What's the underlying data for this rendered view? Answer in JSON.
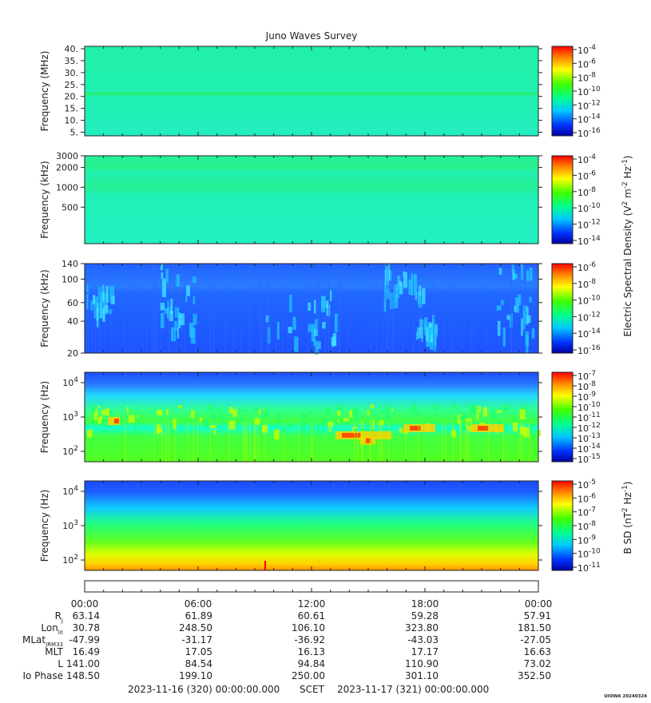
{
  "chart_data": {
    "type": "heatmap",
    "title": "Juno Waves Survey",
    "panels": [
      {
        "ylabel": "Frequency (MHz)",
        "yscale": "linear",
        "ylim": [
          3.5,
          41
        ],
        "yticks": [
          5,
          10,
          15,
          20,
          25,
          30,
          35,
          40
        ],
        "ytick_labels": [
          "5.",
          "10.",
          "15.",
          "20.",
          "25.",
          "30.",
          "35.",
          "40."
        ],
        "colorbar": {
          "labels": [
            "10^-4",
            "10^-6",
            "10^-8",
            "10^-10",
            "10^-12",
            "10^-14",
            "10^-16"
          ]
        }
      },
      {
        "ylabel": "Frequency (kHz)",
        "yscale": "log",
        "ylim": [
          140,
          3000
        ],
        "yticks": [
          500,
          1000,
          2000,
          3000
        ],
        "ytick_labels": [
          "500",
          "1000",
          "2000",
          "3000"
        ],
        "colorbar": {
          "labels": [
            "10^-4",
            "10^-6",
            "10^-8",
            "10^-10",
            "10^-12",
            "10^-14"
          ]
        }
      },
      {
        "ylabel": "Frequency (kHz)",
        "yscale": "log",
        "ylim": [
          20,
          140
        ],
        "yticks": [
          20,
          40,
          60,
          100,
          140
        ],
        "ytick_labels": [
          "20",
          "40",
          "60",
          "100",
          "140"
        ],
        "colorbar": {
          "labels": [
            "10^-6",
            "10^-8",
            "10^-10",
            "10^-12",
            "10^-14",
            "10^-16"
          ]
        }
      },
      {
        "ylabel": "Frequency (Hz)",
        "yscale": "log",
        "ylim": [
          50,
          20000
        ],
        "yticks": [
          100,
          1000,
          10000
        ],
        "ytick_labels": [
          "10^2",
          "10^3",
          "10^4"
        ],
        "colorbar": {
          "labels": [
            "10^-7",
            "10^-8",
            "10^-9",
            "10^-10",
            "10^-11",
            "10^-12",
            "10^-13",
            "10^-14",
            "10^-15"
          ]
        }
      },
      {
        "ylabel": "Frequency (Hz)",
        "yscale": "log",
        "ylim": [
          50,
          20000
        ],
        "yticks": [
          100,
          1000,
          10000
        ],
        "ytick_labels": [
          "10^2",
          "10^3",
          "10^4"
        ],
        "colorbar": {
          "labels": [
            "10^-5",
            "10^-6",
            "10^-7",
            "10^-8",
            "10^-9",
            "10^-10",
            "10^-11"
          ]
        }
      }
    ],
    "colorbar_shared_label": "Electric Spectral Density (V^2 m^-2 Hz^-1)",
    "colorbar_b_label": "B SD (nT^2 Hz^-1)",
    "x_tick_labels": [
      "00:00",
      "06:00",
      "12:00",
      "18:00",
      "00:00"
    ],
    "ephemeris": [
      {
        "label": "R",
        "sub": "J",
        "values": [
          "63.14",
          "61.89",
          "60.61",
          "59.28",
          "57.91"
        ]
      },
      {
        "label": "Lon",
        "sub": "III",
        "values": [
          "30.78",
          "248.50",
          "106.10",
          "323.80",
          "181.50"
        ]
      },
      {
        "label": "MLat",
        "sub": "JRM33",
        "values": [
          "-47.99",
          "-31.17",
          "-36.92",
          "-43.03",
          "-27.05"
        ]
      },
      {
        "label": "MLT",
        "sub": "",
        "values": [
          "16.49",
          "17.05",
          "16.13",
          "17.17",
          "16.63"
        ]
      },
      {
        "label": "L",
        "sub": "",
        "values": [
          "141.00",
          "84.54",
          "94.84",
          "110.90",
          "73.02"
        ]
      },
      {
        "label": "Io Phase",
        "sub": "",
        "values": [
          "148.50",
          "199.10",
          "250.00",
          "301.10",
          "352.50"
        ]
      }
    ],
    "footer_start": "2023-11-16 (320) 00:00:00.000",
    "footer_scet": "SCET",
    "footer_end": "2023-11-17 (321) 00:00:00.000",
    "stamp": "UIOWA 20240324",
    "colors": {
      "colormap": [
        "#0000a0",
        "#0033ff",
        "#00c8ff",
        "#00ff80",
        "#40ff00",
        "#ffff00",
        "#ff8000",
        "#ff0000"
      ]
    }
  }
}
